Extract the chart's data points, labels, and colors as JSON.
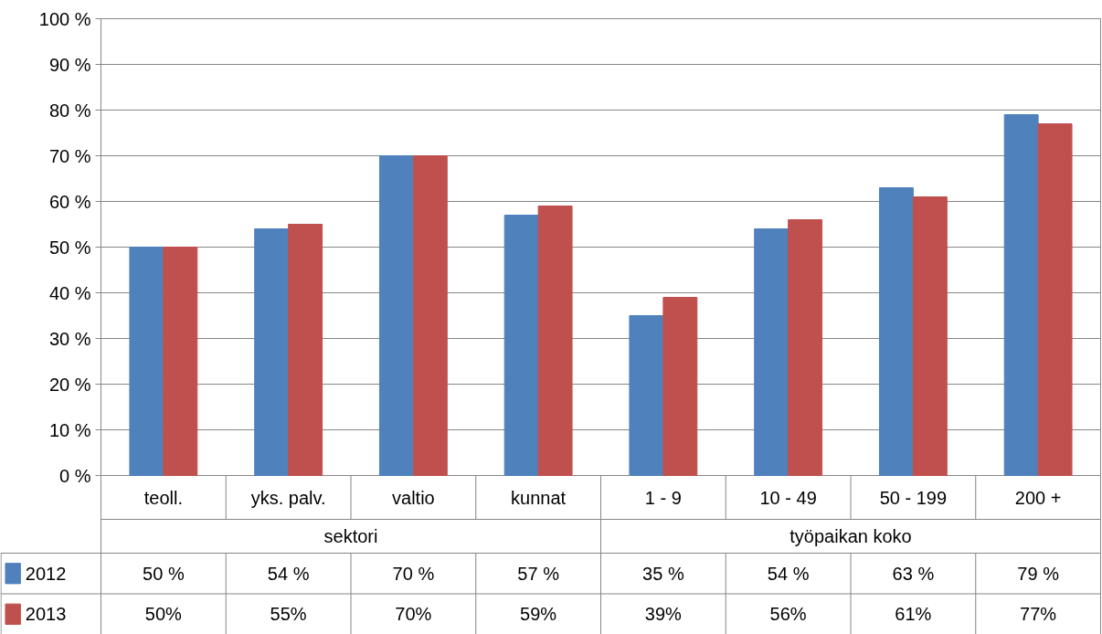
{
  "chart_data": {
    "type": "bar",
    "categories": [
      "teoll.",
      "yks. palv.",
      "valtio",
      "kunnat",
      "1 - 9",
      "10 - 49",
      "50 - 199",
      "200 +"
    ],
    "series": [
      {
        "name": "2012",
        "color": "#4f81bd",
        "values": [
          50,
          54,
          70,
          57,
          35,
          54,
          63,
          79
        ],
        "value_labels": [
          "50 %",
          "54 %",
          "70 %",
          "57 %",
          "35 %",
          "54 %",
          "63 %",
          "79 %"
        ]
      },
      {
        "name": "2013",
        "color": "#c0504d",
        "values": [
          50,
          55,
          70,
          59,
          39,
          56,
          61,
          77
        ],
        "value_labels": [
          "50%",
          "55%",
          "70%",
          "59%",
          "39%",
          "56%",
          "61%",
          "77%"
        ]
      }
    ],
    "annotations": [
      "sektori",
      "työpaikan koko"
    ],
    "ylim": [
      0,
      100
    ],
    "yticks": [
      {
        "value": 0,
        "label": "0 %"
      },
      {
        "value": 10,
        "label": "10 %"
      },
      {
        "value": 20,
        "label": "20 %"
      },
      {
        "value": 30,
        "label": "30 %"
      },
      {
        "value": 40,
        "label": "40 %"
      },
      {
        "value": 50,
        "label": "50 %"
      },
      {
        "value": 60,
        "label": "60 %"
      },
      {
        "value": 70,
        "label": "70 %"
      },
      {
        "value": 80,
        "label": "80 %"
      },
      {
        "value": 90,
        "label": "90 %"
      },
      {
        "value": 100,
        "label": "100 %"
      }
    ],
    "grid": "y",
    "legend": "bottom"
  }
}
